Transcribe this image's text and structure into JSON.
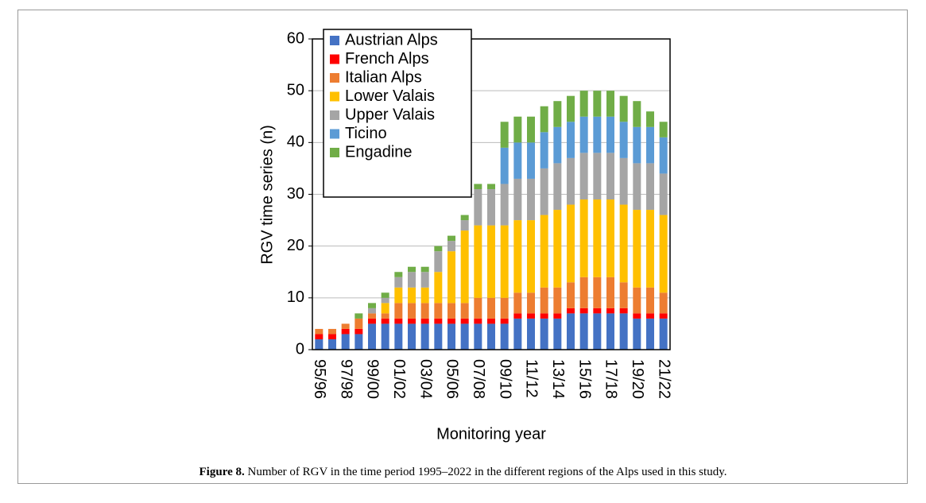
{
  "chart_data": {
    "type": "stacked-bar",
    "categories": [
      "95/96",
      null,
      "97/98",
      null,
      "99/00",
      null,
      "01/02",
      null,
      "03/04",
      null,
      "05/06",
      null,
      "07/08",
      null,
      "09/10",
      null,
      "11/12",
      null,
      "13/14",
      null,
      "15/16",
      null,
      "17/18",
      null,
      "19/20",
      null,
      "21/22"
    ],
    "series": [
      {
        "name": "Austrian Alps",
        "color": "#4472c4",
        "values": [
          2,
          2,
          3,
          3,
          5,
          5,
          5,
          5,
          5,
          5,
          5,
          5,
          5,
          5,
          5,
          6,
          6,
          6,
          6,
          7,
          7,
          7,
          7,
          7,
          6,
          6,
          6
        ]
      },
      {
        "name": "French Alps",
        "color": "#ff0000",
        "values": [
          1,
          1,
          1,
          1,
          1,
          1,
          1,
          1,
          1,
          1,
          1,
          1,
          1,
          1,
          1,
          1,
          1,
          1,
          1,
          1,
          1,
          1,
          1,
          1,
          1,
          1,
          1
        ]
      },
      {
        "name": "Italian Alps",
        "color": "#ed7d31",
        "values": [
          1,
          1,
          1,
          2,
          1,
          1,
          3,
          3,
          3,
          3,
          3,
          3,
          4,
          4,
          4,
          4,
          4,
          5,
          5,
          5,
          6,
          6,
          6,
          5,
          5,
          5,
          4
        ]
      },
      {
        "name": "Lower Valais",
        "color": "#ffc000",
        "values": [
          0,
          0,
          0,
          0,
          0,
          2,
          3,
          3,
          3,
          6,
          10,
          14,
          14,
          14,
          14,
          14,
          14,
          14,
          15,
          15,
          15,
          15,
          15,
          15,
          15,
          15,
          15
        ]
      },
      {
        "name": "Upper Valais",
        "color": "#a5a5a5",
        "values": [
          0,
          0,
          0,
          0,
          1,
          1,
          2,
          3,
          3,
          4,
          2,
          2,
          7,
          7,
          8,
          8,
          8,
          9,
          9,
          9,
          9,
          9,
          9,
          9,
          9,
          9,
          8
        ]
      },
      {
        "name": "Ticino",
        "color": "#5b9bd5",
        "values": [
          0,
          0,
          0,
          0,
          0,
          0,
          0,
          0,
          0,
          0,
          0,
          0,
          0,
          0,
          7,
          7,
          7,
          7,
          7,
          7,
          7,
          7,
          7,
          7,
          7,
          7,
          7
        ]
      },
      {
        "name": "Engadine",
        "color": "#70ad47",
        "values": [
          0,
          0,
          0,
          1,
          1,
          1,
          1,
          1,
          1,
          1,
          1,
          1,
          1,
          1,
          5,
          5,
          5,
          5,
          5,
          5,
          5,
          5,
          5,
          5,
          5,
          3,
          3
        ]
      }
    ],
    "y_label": "RGV time series (n)",
    "x_label": "Monitoring year",
    "ylim": [
      0,
      60
    ],
    "yticks": [
      0,
      10,
      20,
      30,
      40,
      50,
      60
    ],
    "grid": true,
    "legend": "upper left"
  },
  "caption": {
    "label": "Figure 8.",
    "text": " Number of RGV in the time period 1995–2022 in the different regions of the Alps used in this study."
  }
}
